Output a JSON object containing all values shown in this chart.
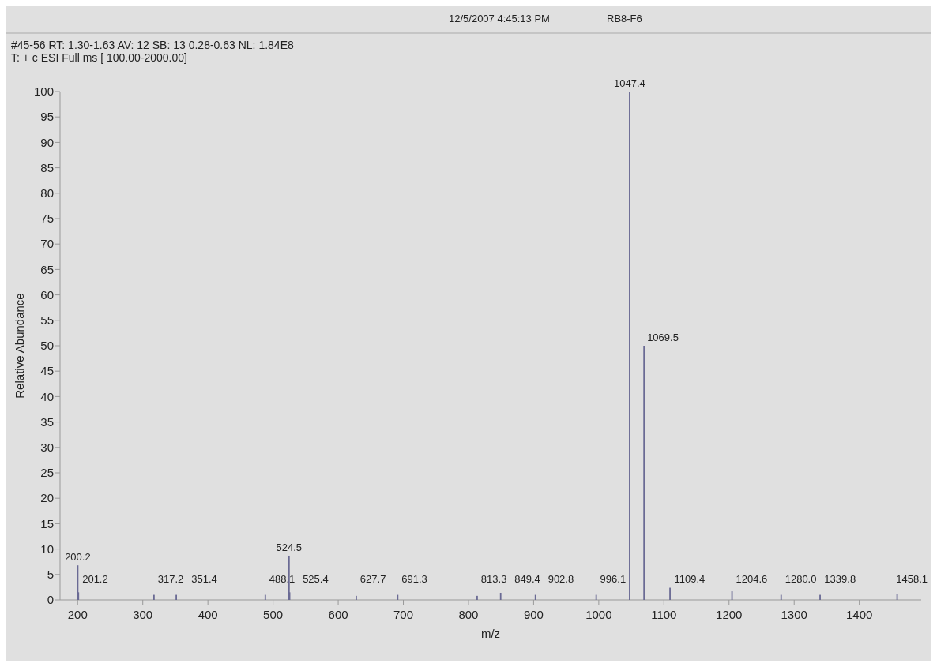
{
  "chart_data": {
    "type": "bar",
    "title": "#45-56  RT: 1.30-1.63  AV: 12  SB: 13 0.28-0.63  NL: 1.84E8",
    "subtitle": "T: + c ESI Full ms [ 100.00-2000.00]",
    "annotations": [
      "12/5/2007 4:45:13 PM",
      "RB8-F6",
      {
        "text": "200.2",
        "x": 200.2,
        "y": 6.8
      },
      {
        "text": "201.2",
        "x": 201.2,
        "y": 1.5
      },
      {
        "text": "317.2",
        "x": 317.2,
        "y": 1
      },
      {
        "text": "351.4",
        "x": 351.4,
        "y": 1
      },
      {
        "text": "488.1",
        "x": 488.1,
        "y": 1
      },
      {
        "text": "524.5",
        "x": 524.5,
        "y": 8.7
      },
      {
        "text": "525.4",
        "x": 525.4,
        "y": 1.5
      },
      {
        "text": "627.7",
        "x": 627.7,
        "y": 0.8
      },
      {
        "text": "691.3",
        "x": 691.3,
        "y": 1
      },
      {
        "text": "813.3",
        "x": 813.3,
        "y": 0.8
      },
      {
        "text": "849.4",
        "x": 849.4,
        "y": 1.4
      },
      {
        "text": "902.8",
        "x": 902.8,
        "y": 1
      },
      {
        "text": "996.1",
        "x": 996.1,
        "y": 1
      },
      {
        "text": "1047.4",
        "x": 1047.4,
        "y": 100
      },
      {
        "text": "1069.5",
        "x": 1069.5,
        "y": 50
      },
      {
        "text": "1109.4",
        "x": 1109.4,
        "y": 2.4
      },
      {
        "text": "1204.6",
        "x": 1204.6,
        "y": 1.7
      },
      {
        "text": "1280.0",
        "x": 1280.0,
        "y": 1
      },
      {
        "text": "1339.8",
        "x": 1339.8,
        "y": 1
      },
      {
        "text": "1458.1",
        "x": 1458.1,
        "y": 1.2
      }
    ],
    "xlabel": "m/z",
    "ylabel": "Relative Abundance",
    "x": [
      200.2,
      201.2,
      317.2,
      351.4,
      488.1,
      524.5,
      525.4,
      627.7,
      691.3,
      813.3,
      849.4,
      902.8,
      996.1,
      1047.4,
      1069.5,
      1109.4,
      1204.6,
      1280.0,
      1339.8,
      1458.1
    ],
    "values": [
      6.8,
      1.5,
      1,
      1,
      1,
      8.7,
      1.5,
      0.8,
      1,
      0.8,
      1.4,
      1,
      1,
      100,
      50,
      2.4,
      1.7,
      1,
      1,
      1.2
    ],
    "color": "#6a6a94",
    "xlim": [
      173,
      1495
    ],
    "xticks": [
      200,
      300,
      400,
      500,
      600,
      700,
      800,
      900,
      1000,
      1100,
      1200,
      1300,
      1400
    ],
    "ylim": [
      0,
      100
    ],
    "yticks": [
      0,
      5,
      10,
      15,
      20,
      25,
      30,
      35,
      40,
      45,
      50,
      55,
      60,
      65,
      70,
      75,
      80,
      85,
      90,
      95,
      100
    ],
    "grid": false
  }
}
